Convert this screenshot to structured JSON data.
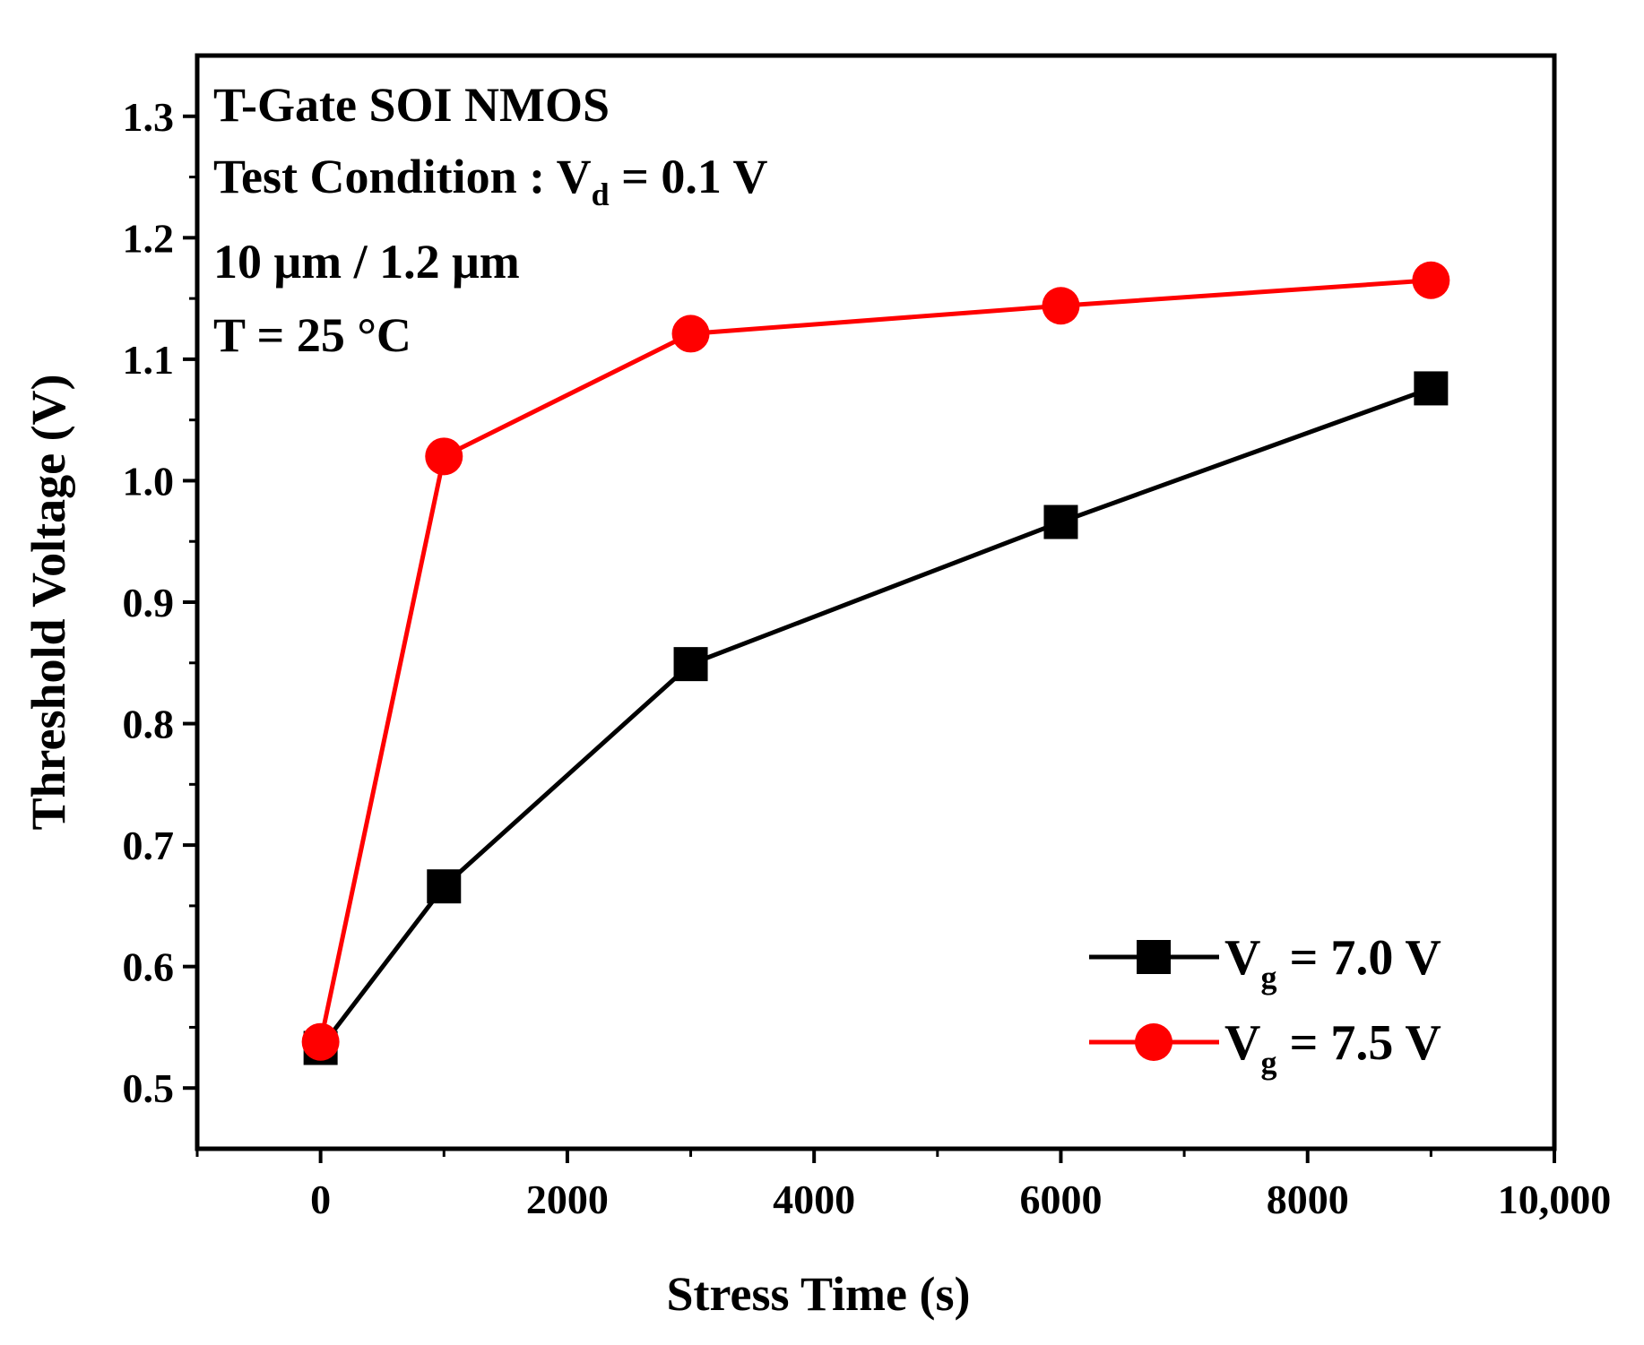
{
  "chart_data": {
    "type": "line",
    "xlabel": "Stress Time (s)",
    "ylabel": "Threshold Voltage (V)",
    "xlim": [
      -1000,
      10000
    ],
    "ylim": [
      0.45,
      1.35
    ],
    "xticks": [
      0,
      2000,
      4000,
      6000,
      8000,
      10000
    ],
    "xtick_labels": [
      "0",
      "2000",
      "4000",
      "6000",
      "8000",
      "10,000"
    ],
    "yticks": [
      0.5,
      0.6,
      0.7,
      0.8,
      0.9,
      1.0,
      1.1,
      1.2,
      1.3
    ],
    "ytick_labels": [
      "0.5",
      "0.6",
      "0.7",
      "0.8",
      "0.9",
      "1.0",
      "1.1",
      "1.2",
      "1.3"
    ],
    "grid": false,
    "legend_position": "bottom-right",
    "annotations": [
      {
        "text": "T-Gate SOI NMOS"
      },
      {
        "text": "Test Condition : V",
        "sub": "d",
        "after": " = 0.1 V"
      },
      {
        "text": "10 μm / 1.2 μm"
      },
      {
        "text": "T = 25 °C"
      }
    ],
    "series": [
      {
        "name": "V",
        "name_sub": "g",
        "name_after": " = 7.0 V",
        "marker": "square",
        "color": "#000000",
        "x": [
          0,
          1000,
          3000,
          6000,
          9000
        ],
        "y": [
          0.533,
          0.666,
          0.849,
          0.966,
          1.076
        ]
      },
      {
        "name": "V",
        "name_sub": "g",
        "name_after": " = 7.5 V",
        "marker": "circle",
        "color": "#ff0000",
        "x": [
          0,
          1000,
          3000,
          6000,
          9000
        ],
        "y": [
          0.538,
          1.02,
          1.121,
          1.144,
          1.165
        ]
      }
    ]
  }
}
